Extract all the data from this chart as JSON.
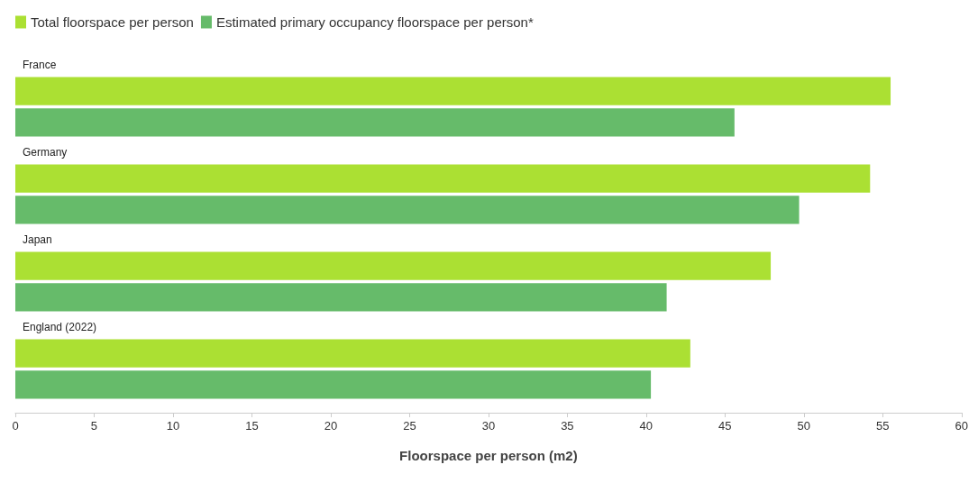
{
  "chart_data": {
    "type": "bar",
    "orientation": "horizontal",
    "categories": [
      "France",
      "Germany",
      "Japan",
      "England (2022)"
    ],
    "series": [
      {
        "name": "Total floorspace per person",
        "color": "#abe033",
        "values": [
          55.5,
          54.2,
          47.9,
          42.8
        ]
      },
      {
        "name": "Estimated primary occupancy floorspace per person*",
        "color": "#66bb6a",
        "values": [
          45.6,
          49.7,
          41.3,
          40.3
        ]
      }
    ],
    "xlabel": "Floorspace per person (m2)",
    "xlim": [
      0,
      60
    ],
    "xticks": [
      0,
      5,
      10,
      15,
      20,
      25,
      30,
      35,
      40,
      45,
      50,
      55,
      60
    ],
    "grid": false,
    "legend": "top left"
  }
}
